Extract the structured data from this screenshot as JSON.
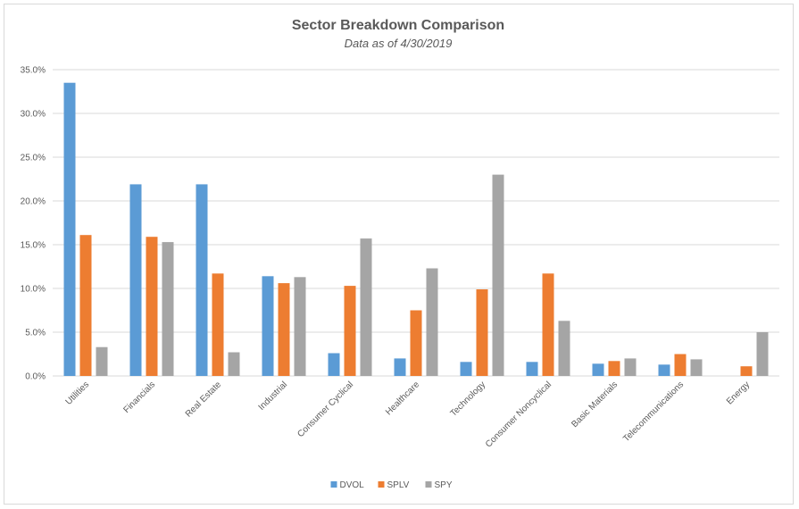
{
  "chart_data": {
    "type": "bar",
    "title": "Sector Breakdown Comparison",
    "subtitle": "Data as of 4/30/2019",
    "xlabel": "",
    "ylabel": "",
    "ylim": [
      0,
      0.35
    ],
    "y_ticks": [
      "0.0%",
      "5.0%",
      "10.0%",
      "15.0%",
      "20.0%",
      "25.0%",
      "30.0%",
      "35.0%"
    ],
    "y_tick_values": [
      0,
      0.05,
      0.1,
      0.15,
      0.2,
      0.25,
      0.3,
      0.35
    ],
    "grid": true,
    "legend_position": "bottom",
    "categories": [
      "Utilities",
      "Financials",
      "Real Estate",
      "Industrial",
      "Consumer Cyclical",
      "Healthcare",
      "Technology",
      "Consumer Noncyclical",
      "Basic Materials",
      "Telecommunications",
      "Energy"
    ],
    "series": [
      {
        "name": "DVOL",
        "color": "#5b9bd5",
        "values": [
          0.335,
          0.219,
          0.219,
          0.114,
          0.026,
          0.02,
          0.016,
          0.016,
          0.014,
          0.013,
          0.0
        ]
      },
      {
        "name": "SPLV",
        "color": "#ed7d31",
        "values": [
          0.161,
          0.159,
          0.117,
          0.106,
          0.103,
          0.075,
          0.099,
          0.117,
          0.017,
          0.025,
          0.011
        ]
      },
      {
        "name": "SPY",
        "color": "#a5a5a5",
        "values": [
          0.033,
          0.153,
          0.027,
          0.113,
          0.157,
          0.123,
          0.23,
          0.063,
          0.02,
          0.019,
          0.05
        ]
      }
    ]
  }
}
